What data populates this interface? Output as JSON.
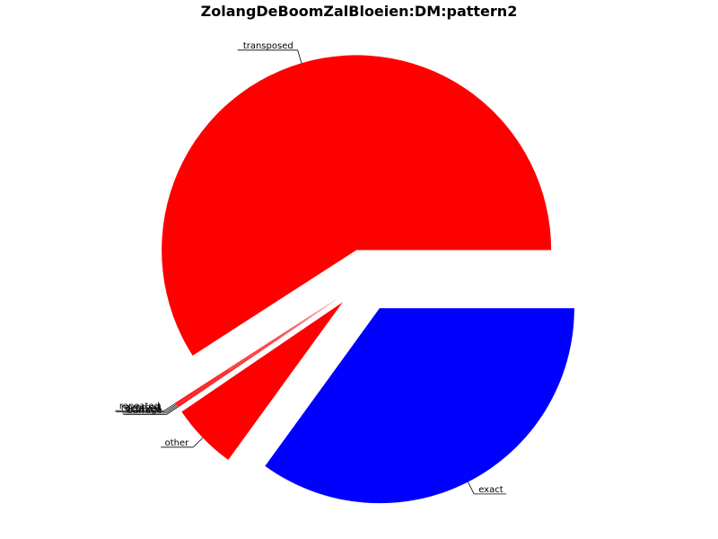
{
  "chart_data": {
    "type": "pie",
    "title": "ZolangDeBoomZalBloeien:DM:pattern2",
    "slices": [
      {
        "label": "exact",
        "value": 35.0,
        "color": "#0000ff"
      },
      {
        "label": "other",
        "value": 5.5,
        "color": "#ff0000"
      },
      {
        "label": "barrage",
        "value": 0.1,
        "color": "#ff0000"
      },
      {
        "label": "octaved",
        "value": 0.1,
        "color": "#ff0000"
      },
      {
        "label": "reversed",
        "value": 0.1,
        "color": "#ff0000"
      },
      {
        "label": "repeated",
        "value": 0.1,
        "color": "#ff0000"
      },
      {
        "label": "transposed",
        "value": 59.1,
        "color": "#ff0000"
      }
    ],
    "start_angle_deg": 0,
    "direction": "clockwise-on-screen",
    "exploded": true,
    "grid": false,
    "legend": "none"
  }
}
